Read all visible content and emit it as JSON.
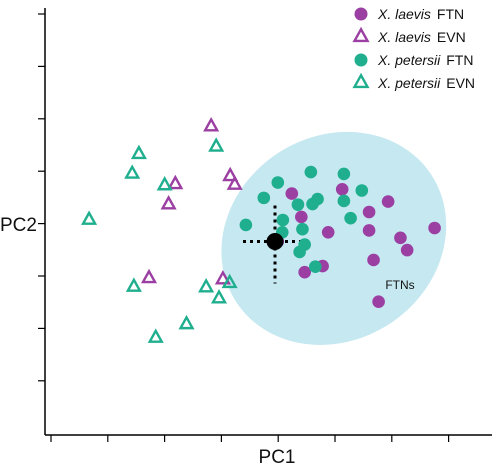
{
  "chart_data": {
    "type": "scatter",
    "title": "",
    "xlabel": "PC1",
    "ylabel": "PC2",
    "xlim": [
      -4,
      4
    ],
    "ylim": [
      -3.1,
      3.8
    ],
    "grid": false,
    "legend_position": "top-right",
    "series": [
      {
        "species": "X. laevis",
        "tissue": "FTN",
        "marker": "filled-circle",
        "color": "#9B3FA3",
        "points": [
          [
            1.2,
            0.85
          ],
          [
            0.3,
            0.78
          ],
          [
            2.02,
            0.65
          ],
          [
            1.68,
            0.48
          ],
          [
            0.47,
            0.4
          ],
          [
            2.85,
            0.22
          ],
          [
            1.68,
            0.18
          ],
          [
            0.95,
            0.15
          ],
          [
            2.24,
            0.06
          ],
          [
            0.05,
            0.0
          ],
          [
            2.36,
            -0.14
          ],
          [
            1.76,
            -0.3
          ],
          [
            0.85,
            -0.4
          ],
          [
            0.53,
            -0.5
          ],
          [
            1.85,
            -0.98
          ]
        ]
      },
      {
        "species": "X. laevis",
        "tissue": "EVN",
        "marker": "open-triangle",
        "color": "#9B3FA3",
        "points": [
          [
            -1.14,
            1.87
          ],
          [
            -0.8,
            1.06
          ],
          [
            -0.72,
            0.92
          ],
          [
            -1.78,
            0.93
          ],
          [
            -1.9,
            0.6
          ],
          [
            -2.25,
            -0.6
          ],
          [
            -0.93,
            -0.62
          ]
        ]
      },
      {
        "species": "X. petersii",
        "tissue": "FTN",
        "marker": "filled-circle",
        "color": "#1FAF8E",
        "points": [
          [
            0.64,
            1.13
          ],
          [
            1.23,
            1.1
          ],
          [
            0.05,
            0.96
          ],
          [
            1.55,
            0.83
          ],
          [
            -0.2,
            0.71
          ],
          [
            0.76,
            0.69
          ],
          [
            0.41,
            0.6
          ],
          [
            1.23,
            0.66
          ],
          [
            0.67,
            0.61
          ],
          [
            0.14,
            0.35
          ],
          [
            0.13,
            0.15
          ],
          [
            0.49,
            0.2
          ],
          [
            1.35,
            0.38
          ],
          [
            0.44,
            -0.17
          ],
          [
            0.72,
            -0.41
          ],
          [
            -0.52,
            0.27
          ],
          [
            0.53,
            -0.05
          ]
        ]
      },
      {
        "species": "X. petersii",
        "tissue": "EVN",
        "marker": "open-triangle",
        "color": "#1FAF8E",
        "points": [
          [
            -1.05,
            1.54
          ],
          [
            -2.43,
            1.42
          ],
          [
            -2.55,
            1.1
          ],
          [
            -1.97,
            0.91
          ],
          [
            -3.32,
            0.35
          ],
          [
            -2.52,
            -0.74
          ],
          [
            -1.58,
            -1.35
          ],
          [
            -2.13,
            -1.57
          ],
          [
            -0.81,
            -0.68
          ],
          [
            -1.23,
            -0.75
          ],
          [
            -1.0,
            -0.93
          ]
        ]
      }
    ],
    "center_marker": [
      0.0,
      0.0
    ],
    "ellipse": {
      "label": "FTNs",
      "fill": "#C6E8F1",
      "center": [
        1.05,
        0.05
      ],
      "rx": 2.08,
      "ry": 1.66,
      "rotation_deg": -33
    },
    "legend": [
      {
        "species": "X. laevis",
        "tissue": "FTN"
      },
      {
        "species": "X. laevis",
        "tissue": "EVN"
      },
      {
        "species": "X. petersii",
        "tissue": "FTN"
      },
      {
        "species": "X. petersii",
        "tissue": "EVN"
      }
    ]
  }
}
